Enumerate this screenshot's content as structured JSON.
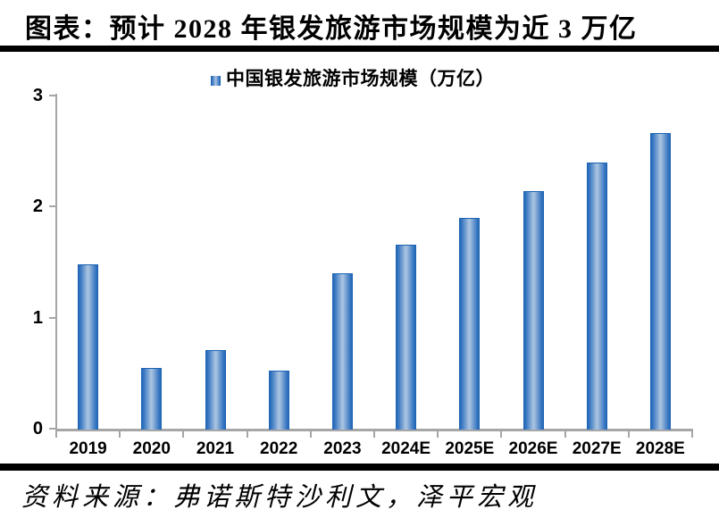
{
  "page": {
    "title": "图表：预计 2028 年银发旅游市场规模为近 3 万亿",
    "source": "资料来源：弗诺斯特沙利文，泽平宏观"
  },
  "legend": {
    "label": "中国银发旅游市场规模（万亿）"
  },
  "colors": {
    "bar_edge": "#1a61b2",
    "bar_mid2": "#3a78c2",
    "bar_mid": "#a8c2e0",
    "axis": "#a6a6a6",
    "rule": "#000000",
    "text": "#000000"
  },
  "chart_data": {
    "type": "bar",
    "title": "中国银发旅游市场规模（万亿）",
    "categories": [
      "2019",
      "2020",
      "2021",
      "2022",
      "2023",
      "2024E",
      "2025E",
      "2026E",
      "2027E",
      "2028E"
    ],
    "values": [
      1.48,
      0.55,
      0.71,
      0.52,
      1.4,
      1.66,
      1.9,
      2.14,
      2.4,
      2.66
    ],
    "xlabel": "",
    "ylabel": "",
    "ylim": [
      0,
      3
    ],
    "yticks": [
      0,
      1,
      2,
      3
    ],
    "grid": false,
    "legend_position": "top-center"
  }
}
